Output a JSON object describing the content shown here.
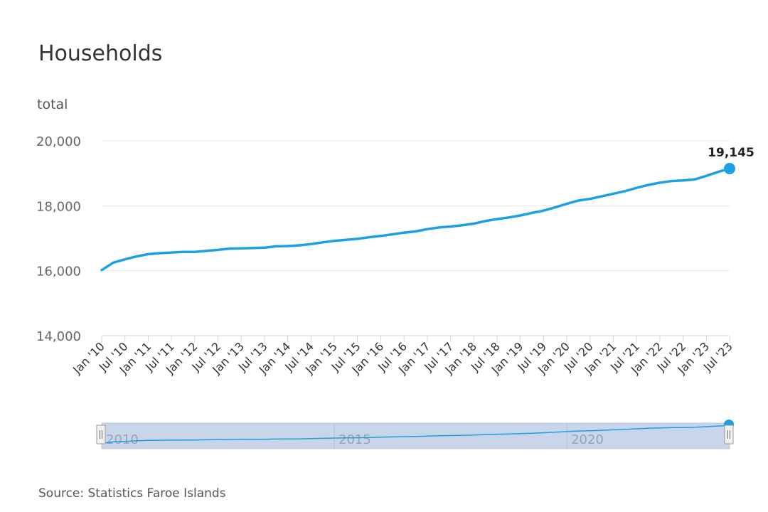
{
  "title": "Households",
  "source": "Source: Statistics Faroe Islands",
  "colors": {
    "line": "#1ba1e2",
    "grid": "#e6e6e6",
    "axis": "#ccd6eb",
    "navigator_mask": "#c9d5ea"
  },
  "chart_data": {
    "type": "line",
    "title": "Households",
    "ylabel": "total",
    "xlabel": "",
    "ylim": [
      14000,
      20000
    ],
    "y_ticks": [
      14000,
      16000,
      18000,
      20000
    ],
    "y_tick_labels": [
      "14,000",
      "16,000",
      "18,000",
      "20,000"
    ],
    "x_tick_labels": [
      "Jan '10",
      "Jul '10",
      "Jan '11",
      "Jul '11",
      "Jan '12",
      "Jul '12",
      "Jan '13",
      "Jul '13",
      "Jan '14",
      "Jul '14",
      "Jan '15",
      "Jul '15",
      "Jan '16",
      "Jul '16",
      "Jan '17",
      "Jul '17",
      "Jan '18",
      "Jul '18",
      "Jan '19",
      "Jul '19",
      "Jan '20",
      "Jul '20",
      "Jan '21",
      "Jul '21",
      "Jan '22",
      "Jul '22",
      "Jan '23",
      "Jul '23"
    ],
    "grid": true,
    "last_value_label": "19,145",
    "navigator_labels": [
      "2010",
      "2015",
      "2020"
    ],
    "series": [
      {
        "x": [
          "2010-01",
          "2010-04",
          "2010-07",
          "2010-10",
          "2011-01",
          "2011-04",
          "2011-07",
          "2011-10",
          "2012-01",
          "2012-04",
          "2012-07",
          "2012-10",
          "2013-01",
          "2013-04",
          "2013-07",
          "2013-10",
          "2014-01",
          "2014-04",
          "2014-07",
          "2014-10",
          "2015-01",
          "2015-04",
          "2015-07",
          "2015-10",
          "2016-01",
          "2016-04",
          "2016-07",
          "2016-10",
          "2017-01",
          "2017-04",
          "2017-07",
          "2017-10",
          "2018-01",
          "2018-04",
          "2018-07",
          "2018-10",
          "2019-01",
          "2019-04",
          "2019-07",
          "2019-10",
          "2020-01",
          "2020-04",
          "2020-07",
          "2020-10",
          "2021-01",
          "2021-04",
          "2021-07",
          "2021-10",
          "2022-01",
          "2022-04",
          "2022-07",
          "2022-10",
          "2023-01",
          "2023-04",
          "2023-07"
        ],
        "values": [
          16020,
          16250,
          16350,
          16440,
          16510,
          16540,
          16560,
          16580,
          16580,
          16610,
          16640,
          16680,
          16690,
          16700,
          16710,
          16750,
          16760,
          16780,
          16820,
          16870,
          16920,
          16950,
          16980,
          17030,
          17070,
          17120,
          17170,
          17210,
          17280,
          17330,
          17360,
          17400,
          17450,
          17530,
          17590,
          17640,
          17700,
          17780,
          17850,
          17950,
          18060,
          18160,
          18210,
          18290,
          18370,
          18450,
          18550,
          18640,
          18710,
          18760,
          18780,
          18810,
          18920,
          19040,
          19145
        ]
      }
    ]
  }
}
